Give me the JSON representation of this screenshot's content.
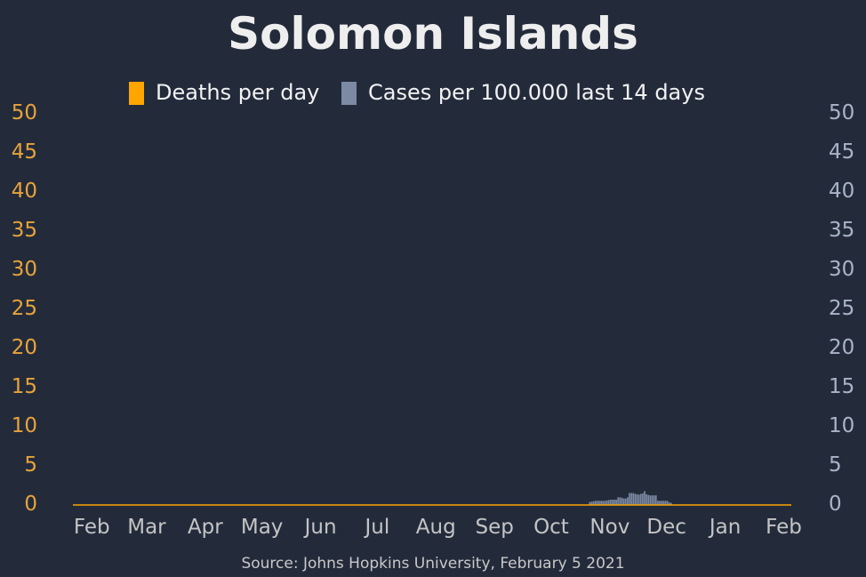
{
  "chart_data": {
    "type": "bar",
    "title": "Solomon Islands",
    "source": "Source: Johns Hopkins University, February 5 2021",
    "legend": {
      "placement": "top-center",
      "items": [
        {
          "label": "Deaths per day",
          "color": "#ffa500"
        },
        {
          "label": "Cases per 100.000 last 14 days",
          "color": "#7d8aa3"
        }
      ]
    },
    "x_tick_labels": [
      "Feb",
      "Mar",
      "Apr",
      "May",
      "Jun",
      "Jul",
      "Aug",
      "Sep",
      "Oct",
      "Nov",
      "Dec",
      "Jan",
      "Feb"
    ],
    "y_left": {
      "ticks": [
        "0",
        "5",
        "10",
        "15",
        "20",
        "25",
        "30",
        "35",
        "40",
        "45",
        "50"
      ],
      "range": [
        0,
        50
      ],
      "color": "#e8a33a"
    },
    "y_right": {
      "ticks": [
        "0",
        "5",
        "10",
        "15",
        "20",
        "25",
        "30",
        "35",
        "40",
        "45",
        "50"
      ],
      "range": [
        0,
        50
      ],
      "color": "#aab4c8"
    },
    "grid": false,
    "series": [
      {
        "name": "Deaths per day",
        "axis": "left",
        "color": "#ffa500",
        "note": "zero throughout",
        "values": [
          0
        ]
      },
      {
        "name": "Cases per 100.000 last 14 days",
        "axis": "right",
        "color": "#7d8aa3",
        "dates": [
          "2020-10-21",
          "2020-10-22",
          "2020-10-23",
          "2020-10-24",
          "2020-10-25",
          "2020-10-26",
          "2020-10-27",
          "2020-10-28",
          "2020-10-29",
          "2020-10-30",
          "2020-10-31",
          "2020-11-01",
          "2020-11-02",
          "2020-11-03",
          "2020-11-04",
          "2020-11-05",
          "2020-11-06",
          "2020-11-07",
          "2020-11-08",
          "2020-11-09",
          "2020-11-10",
          "2020-11-11",
          "2020-11-12",
          "2020-11-13",
          "2020-11-14",
          "2020-11-15",
          "2020-11-16",
          "2020-11-17",
          "2020-11-18",
          "2020-11-19",
          "2020-11-20",
          "2020-11-21",
          "2020-11-22",
          "2020-11-23",
          "2020-11-24",
          "2020-11-25",
          "2020-11-26",
          "2020-11-27",
          "2020-11-28",
          "2020-11-29",
          "2020-11-30",
          "2020-12-01",
          "2020-12-02",
          "2020-12-03"
        ],
        "values": [
          0.15,
          0.2,
          0.25,
          0.3,
          0.3,
          0.3,
          0.3,
          0.3,
          0.3,
          0.35,
          0.4,
          0.45,
          0.45,
          0.45,
          0.45,
          0.75,
          0.75,
          0.7,
          0.6,
          0.6,
          0.75,
          1.3,
          1.3,
          1.3,
          1.2,
          1.15,
          1.1,
          1.2,
          1.25,
          1.55,
          1.15,
          1.05,
          1.0,
          1.0,
          1.0,
          1.0,
          0.3,
          0.3,
          0.3,
          0.3,
          0.3,
          0.3,
          0.1,
          0.05
        ]
      }
    ]
  }
}
